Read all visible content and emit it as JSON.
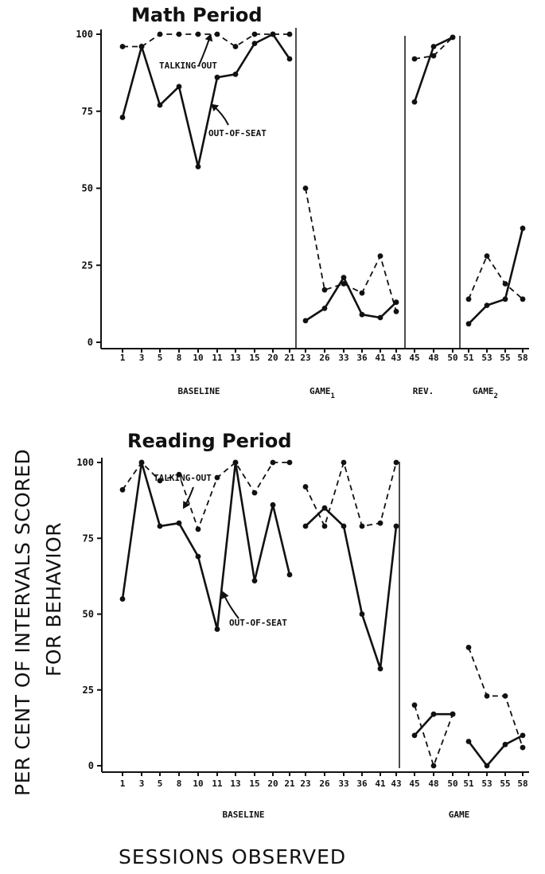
{
  "y_axis_title_line1": "PER CENT OF INTERVALS SCORED",
  "y_axis_title_line2": "FOR BEHAVIOR",
  "x_axis_title": "SESSIONS OBSERVED",
  "chart_data": [
    {
      "type": "line",
      "title": "Math Period",
      "ylabel": "PER CENT OF INTERVALS SCORED FOR BEHAVIOR",
      "xlabel": "SESSIONS OBSERVED",
      "ylim": [
        0,
        100
      ],
      "yticks": [
        0,
        25,
        50,
        75,
        100
      ],
      "categories": [
        "1",
        "3",
        "5",
        "8",
        "10",
        "11",
        "13",
        "15",
        "20",
        "21",
        "23",
        "26",
        "33",
        "36",
        "41",
        "43",
        "45",
        "48",
        "50",
        "51",
        "53",
        "55",
        "58"
      ],
      "phases": [
        {
          "label": "BASELINE",
          "sub": "",
          "categories": [
            "1",
            "3",
            "5",
            "8",
            "10",
            "11",
            "13",
            "15",
            "20",
            "21"
          ]
        },
        {
          "label": "GAME",
          "sub": "1",
          "categories": [
            "23",
            "26",
            "33",
            "36",
            "41",
            "43"
          ]
        },
        {
          "label": "REV.",
          "sub": "",
          "categories": [
            "45",
            "48",
            "50"
          ]
        },
        {
          "label": "GAME",
          "sub": "2",
          "categories": [
            "51",
            "53",
            "55",
            "58"
          ]
        }
      ],
      "series": [
        {
          "name": "TALKING-OUT",
          "style": "dashed",
          "values": [
            96,
            96,
            100,
            100,
            100,
            100,
            96,
            100,
            100,
            100,
            50,
            17,
            19,
            16,
            28,
            10,
            92,
            93,
            99,
            14,
            28,
            19,
            14
          ]
        },
        {
          "name": "OUT-OF-SEAT",
          "style": "solid",
          "values": [
            73,
            96,
            77,
            83,
            57,
            86,
            87,
            97,
            100,
            92,
            7,
            11,
            21,
            9,
            8,
            13,
            78,
            96,
            99,
            6,
            12,
            14,
            37
          ]
        }
      ]
    },
    {
      "type": "line",
      "title": "Reading Period",
      "ylabel": "PER CENT OF INTERVALS SCORED FOR BEHAVIOR",
      "xlabel": "SESSIONS OBSERVED",
      "ylim": [
        0,
        100
      ],
      "yticks": [
        0,
        25,
        50,
        75,
        100
      ],
      "categories": [
        "1",
        "3",
        "5",
        "8",
        "10",
        "11",
        "13",
        "15",
        "20",
        "21",
        "23",
        "26",
        "33",
        "36",
        "41",
        "43",
        "45",
        "48",
        "50",
        "51",
        "53",
        "55",
        "58"
      ],
      "phases": [
        {
          "label": "BASELINE",
          "sub": "",
          "categories": [
            "1",
            "3",
            "5",
            "8",
            "10",
            "11",
            "13",
            "15",
            "20",
            "21",
            "23",
            "26",
            "33",
            "36",
            "41",
            "43"
          ]
        },
        {
          "label": "GAME",
          "sub": "",
          "categories": [
            "45",
            "48",
            "50",
            "51",
            "53",
            "55",
            "58"
          ]
        }
      ],
      "series": [
        {
          "name": "TALKING-OUT",
          "style": "dashed",
          "values": [
            91,
            100,
            94,
            96,
            78,
            95,
            100,
            90,
            100,
            100,
            92,
            79,
            100,
            79,
            80,
            100,
            20,
            0,
            17,
            39,
            23,
            23,
            6
          ]
        },
        {
          "name": "OUT-OF-SEAT",
          "style": "solid",
          "values": [
            55,
            100,
            79,
            80,
            69,
            45,
            100,
            61,
            86,
            63,
            79,
            85,
            79,
            50,
            32,
            79,
            10,
            17,
            17,
            8,
            0,
            7,
            10
          ]
        }
      ]
    }
  ]
}
